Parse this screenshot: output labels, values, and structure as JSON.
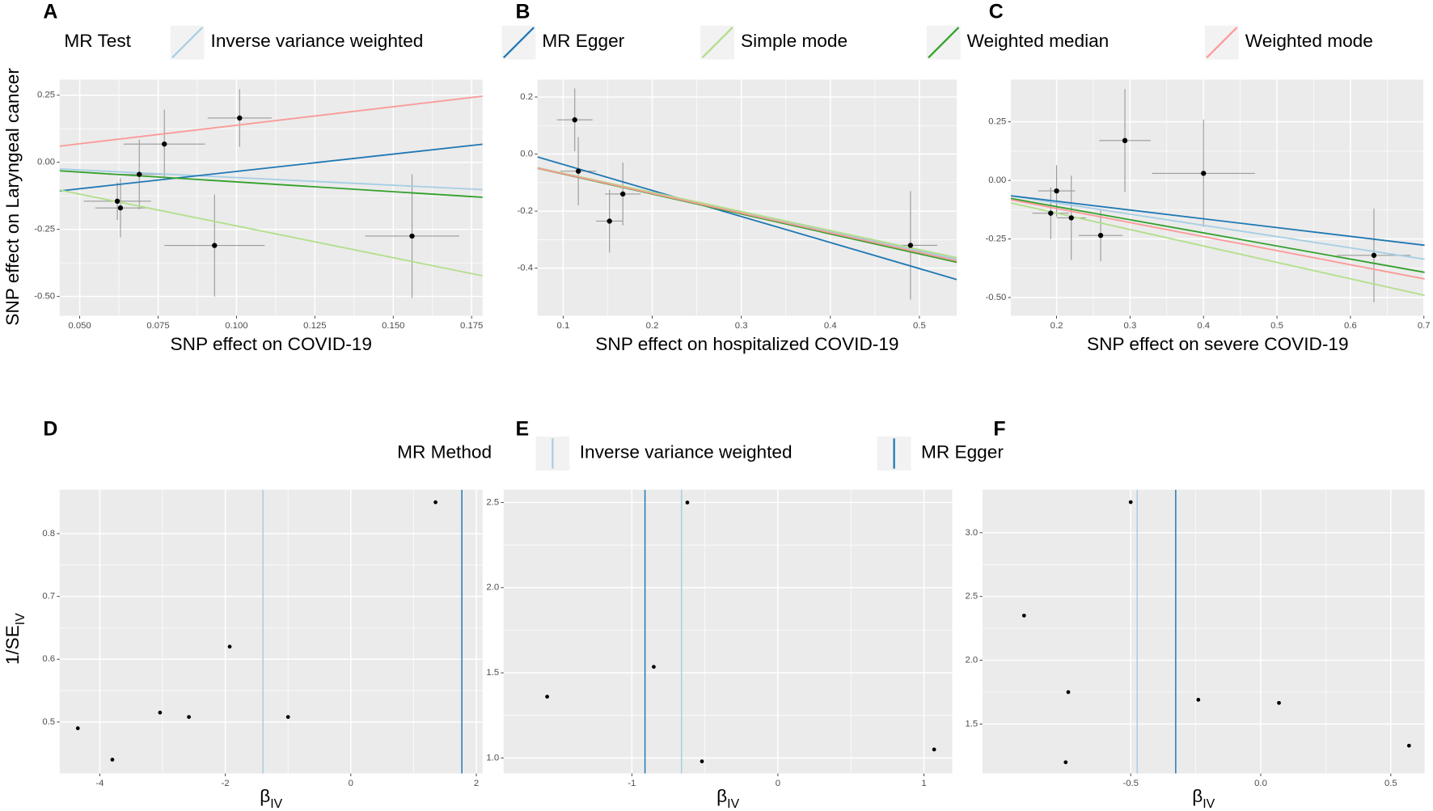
{
  "legend_top": {
    "title": "MR Test",
    "entries": [
      {
        "name": "Inverse variance weighted",
        "color": "#a6cee3"
      },
      {
        "name": "MR Egger",
        "color": "#1f78b4"
      },
      {
        "name": "Simple mode",
        "color": "#b2df8a"
      },
      {
        "name": "Weighted median",
        "color": "#33a02c"
      },
      {
        "name": "Weighted mode",
        "color": "#fb9a99"
      }
    ]
  },
  "legend_bottom": {
    "title": "MR Method",
    "entries": [
      {
        "name": "Inverse variance weighted",
        "color": "#a6cee3"
      },
      {
        "name": "MR Egger",
        "color": "#1f78b4"
      }
    ]
  },
  "chart_data": [
    {
      "panel": "A",
      "type": "scatter",
      "xlabel": "SNP effect on COVID-19",
      "ylabel": "SNP effect on Laryngeal cancer",
      "xlim": [
        0.0436,
        0.1785
      ],
      "ylim": [
        -0.572,
        0.308
      ],
      "xticks": [
        {
          "value": 0.05,
          "label": "0.050"
        },
        {
          "value": 0.075,
          "label": "0.075"
        },
        {
          "value": 0.1,
          "label": "0.100"
        },
        {
          "value": 0.125,
          "label": "0.125"
        },
        {
          "value": 0.15,
          "label": "0.150"
        },
        {
          "value": 0.175,
          "label": "0.175"
        }
      ],
      "yticks": [
        {
          "value": -0.5,
          "label": "-0.50"
        },
        -0.25,
        {
          "value": 0,
          "label": "0.00"
        },
        0.25
      ],
      "points": {
        "x": [
          0.101,
          0.077,
          0.069,
          0.062,
          0.063,
          0.093,
          0.156
        ],
        "y": [
          0.165,
          0.068,
          -0.045,
          -0.145,
          -0.17,
          -0.31,
          -0.275
        ],
        "xerr": [
          0.0102,
          0.013,
          0.01,
          0.0107,
          0.008,
          0.016,
          0.015
        ],
        "yerr": [
          0.107,
          0.128,
          0.13,
          0.07,
          0.11,
          0.19,
          0.23
        ]
      },
      "slopes": [
        -0.57,
        1.29,
        -2.37,
        -0.73,
        1.38
      ],
      "intercepts": [
        0,
        -0.163,
        0,
        0,
        0
      ]
    },
    {
      "panel": "B",
      "type": "scatter",
      "xlabel": "SNP effect on hospitalized COVID-19",
      "xlim": [
        0.0712,
        0.542
      ],
      "ylim": [
        -0.567,
        0.261
      ],
      "xticks": [
        0.1,
        0.2,
        0.3,
        0.4,
        0.5
      ],
      "yticks": [
        -0.4,
        -0.2,
        {
          "value": 0,
          "label": "0.0"
        },
        0.2
      ],
      "points": {
        "x": [
          0.113,
          0.117,
          0.152,
          0.167,
          0.49
        ],
        "y": [
          0.12,
          -0.06,
          -0.235,
          -0.14,
          -0.32
        ],
        "xerr": [
          0.02,
          0.02,
          0.015,
          0.02,
          0.03
        ],
        "yerr": [
          0.11,
          0.12,
          0.11,
          0.11,
          0.19
        ]
      },
      "slopes": [
        -0.68,
        -0.913,
        -0.67,
        -0.7,
        -0.69
      ],
      "intercepts": [
        0,
        0.055,
        0,
        0,
        0
      ]
    },
    {
      "panel": "C",
      "type": "scatter",
      "xlabel": "SNP effect on severe COVID-19",
      "xlim": [
        0.1377,
        0.701
      ],
      "ylim": [
        -0.578,
        0.43
      ],
      "xticks": [
        0.2,
        0.3,
        0.4,
        0.5,
        0.6,
        0.7
      ],
      "yticks": [
        {
          "value": -0.5,
          "label": "-0.50"
        },
        -0.25,
        {
          "value": 0,
          "label": "0.00"
        },
        0.25
      ],
      "points": {
        "x": [
          0.293,
          0.4,
          0.2,
          0.192,
          0.22,
          0.26,
          0.632
        ],
        "y": [
          0.17,
          0.03,
          -0.045,
          -0.14,
          -0.16,
          -0.235,
          -0.32
        ],
        "xerr": [
          0.035,
          0.07,
          0.025,
          0.025,
          0.02,
          0.03,
          0.05
        ],
        "yerr": [
          0.22,
          0.23,
          0.11,
          0.11,
          0.18,
          0.11,
          0.2
        ]
      },
      "slopes": [
        -0.48,
        -0.375,
        -0.7,
        -0.56,
        -0.6
      ],
      "intercepts": [
        0,
        -0.014,
        0,
        0,
        0
      ]
    },
    {
      "panel": "D",
      "type": "scatter",
      "xlabel": {
        "text": "β",
        "sub": "IV"
      },
      "ylabel": {
        "text": "1/SE",
        "sub": "IV"
      },
      "xlim": [
        -4.64,
        2.1
      ],
      "ylim": [
        0.418,
        0.87
      ],
      "xticks": [
        -4,
        -2,
        0,
        2
      ],
      "yticks": [
        0.5,
        0.6,
        0.7,
        0.8
      ],
      "points": {
        "x": [
          -4.35,
          -3.8,
          -3.04,
          -2.58,
          -1.93,
          -1.0,
          1.35
        ],
        "y": [
          0.49,
          0.44,
          0.515,
          0.508,
          0.62,
          0.508,
          0.85
        ]
      },
      "vlines": [
        -1.4,
        1.77
      ]
    },
    {
      "panel": "E",
      "type": "scatter",
      "xlabel": {
        "text": "β",
        "sub": "IV"
      },
      "xlim": [
        -1.878,
        1.194
      ],
      "ylim": [
        0.909,
        2.575
      ],
      "xticks": [
        -1,
        0,
        1
      ],
      "yticks": [
        {
          "value": 1,
          "label": "1.0"
        },
        1.5,
        {
          "value": 2,
          "label": "2.0"
        },
        2.5
      ],
      "points": {
        "x": [
          -1.58,
          -0.85,
          -0.62,
          -0.52,
          1.07
        ],
        "y": [
          1.36,
          1.535,
          2.5,
          0.98,
          1.05
        ]
      },
      "vlines": [
        -0.66,
        -0.91
      ]
    },
    {
      "panel": "F",
      "type": "scatter",
      "xlabel": {
        "text": "β",
        "sub": "IV"
      },
      "xlim": [
        -1.07,
        0.63
      ],
      "ylim": [
        1.112,
        3.337
      ],
      "xticks": [
        -0.5,
        {
          "value": 0,
          "label": "0.0"
        },
        0.5
      ],
      "yticks": [
        1.5,
        {
          "value": 2,
          "label": "2.0"
        },
        2.5,
        {
          "value": 3,
          "label": "3.0"
        }
      ],
      "points": {
        "x": [
          -0.91,
          -0.74,
          -0.75,
          -0.5,
          -0.24,
          0.07,
          0.57
        ],
        "y": [
          2.35,
          1.75,
          1.2,
          3.24,
          1.69,
          1.665,
          1.33
        ]
      },
      "vlines": [
        -0.475,
        -0.327
      ]
    }
  ]
}
